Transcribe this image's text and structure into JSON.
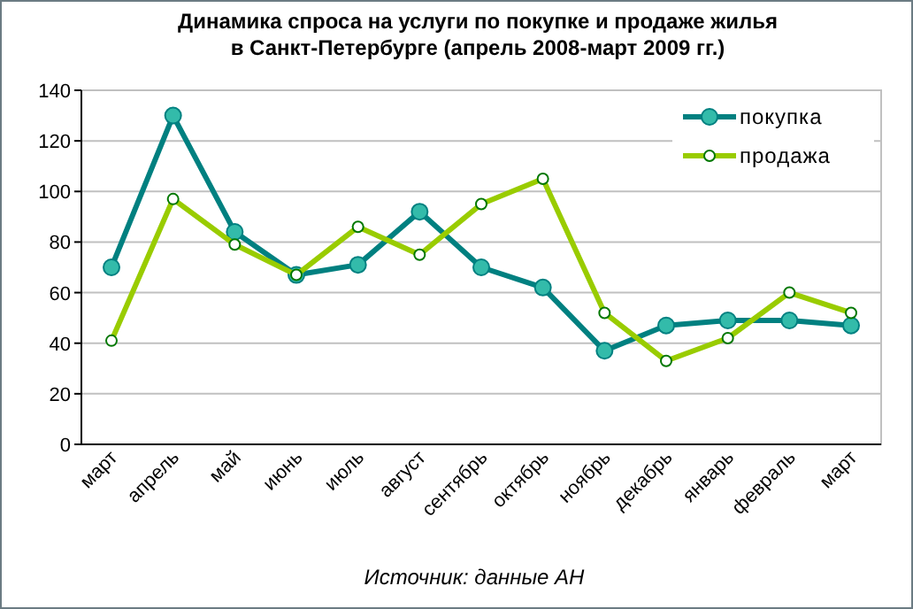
{
  "chart_data": {
    "type": "line",
    "title": "Динамика спроса на услуги по покупке и продаже  жилья\nв Санкт-Петербурге (апрель 2008-март 2009 гг.)",
    "categories": [
      "март",
      "апрель",
      "май",
      "июнь",
      "июль",
      "август",
      "сентябрь",
      "октябрь",
      "ноябрь",
      "декабрь",
      "январь",
      "февраль",
      "март"
    ],
    "series": [
      {
        "name": "покупка",
        "color": "#008080",
        "values": [
          70,
          130,
          84,
          67,
          71,
          92,
          70,
          62,
          37,
          47,
          49,
          49,
          47
        ]
      },
      {
        "name": "продажа",
        "color": "#99cc00",
        "values": [
          41,
          97,
          79,
          67,
          86,
          75,
          95,
          105,
          52,
          33,
          42,
          60,
          52
        ]
      }
    ],
    "ylim": [
      0,
      140
    ],
    "yticks": [
      0,
      20,
      40,
      60,
      80,
      100,
      120,
      140
    ],
    "grid": "y",
    "legend": "top right",
    "marker": "circle",
    "line_style": "solid",
    "annotations": [
      "Источник: данные АН"
    ]
  }
}
